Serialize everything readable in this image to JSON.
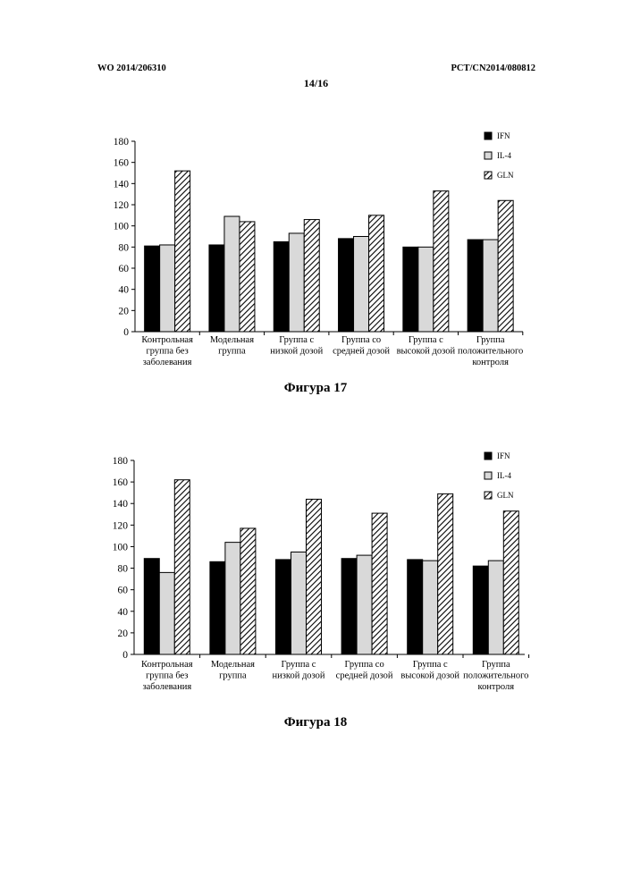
{
  "header": {
    "left": "WO 2014/206310",
    "right": "PCT/CN2014/080812",
    "page": "14/16"
  },
  "chart_data": [
    {
      "type": "bar",
      "caption": "Фигура 17",
      "categories": [
        [
          "Контрольная",
          "группа без",
          "заболевания"
        ],
        [
          "Модельная",
          "группа"
        ],
        [
          "Группа с",
          "низкой дозой"
        ],
        [
          "Группа со",
          "средней дозой"
        ],
        [
          "Группа с",
          "высокой дозой"
        ],
        [
          "Группа",
          "положительного",
          "контроля"
        ]
      ],
      "series": [
        {
          "name": "IFN",
          "fill": "#000000",
          "values": [
            81,
            82,
            85,
            88,
            80,
            87
          ]
        },
        {
          "name": "IL-4",
          "fill": "#d9d9d9",
          "values": [
            82,
            109,
            93,
            90,
            80,
            87
          ]
        },
        {
          "name": "GLN",
          "fill": "hatch",
          "values": [
            152,
            104,
            106,
            110,
            133,
            124
          ]
        }
      ],
      "ylim": [
        0,
        180
      ],
      "yticks": [
        0,
        20,
        40,
        60,
        80,
        100,
        120,
        140,
        160,
        180
      ],
      "legend": "top-right",
      "grid": false
    },
    {
      "type": "bar",
      "caption": "Фигура 18",
      "categories": [
        [
          "Контрольная",
          "группа без",
          "заболевания"
        ],
        [
          "Модельная",
          "группа"
        ],
        [
          "Группа с",
          "низкой дозой"
        ],
        [
          "Группа со",
          "средней дозой"
        ],
        [
          "Группа с",
          "высокой дозой"
        ],
        [
          "Группа",
          "положительного",
          "контроля"
        ]
      ],
      "series": [
        {
          "name": "IFN",
          "fill": "#000000",
          "values": [
            89,
            86,
            88,
            89,
            88,
            82
          ]
        },
        {
          "name": "IL-4",
          "fill": "#d9d9d9",
          "values": [
            76,
            104,
            95,
            92,
            87,
            87
          ]
        },
        {
          "name": "GLN",
          "fill": "hatch",
          "values": [
            162,
            117,
            144,
            131,
            149,
            133
          ]
        }
      ],
      "ylim": [
        0,
        180
      ],
      "yticks": [
        0,
        20,
        40,
        60,
        80,
        100,
        120,
        140,
        160,
        180
      ],
      "legend": "top-right",
      "grid": false
    }
  ]
}
